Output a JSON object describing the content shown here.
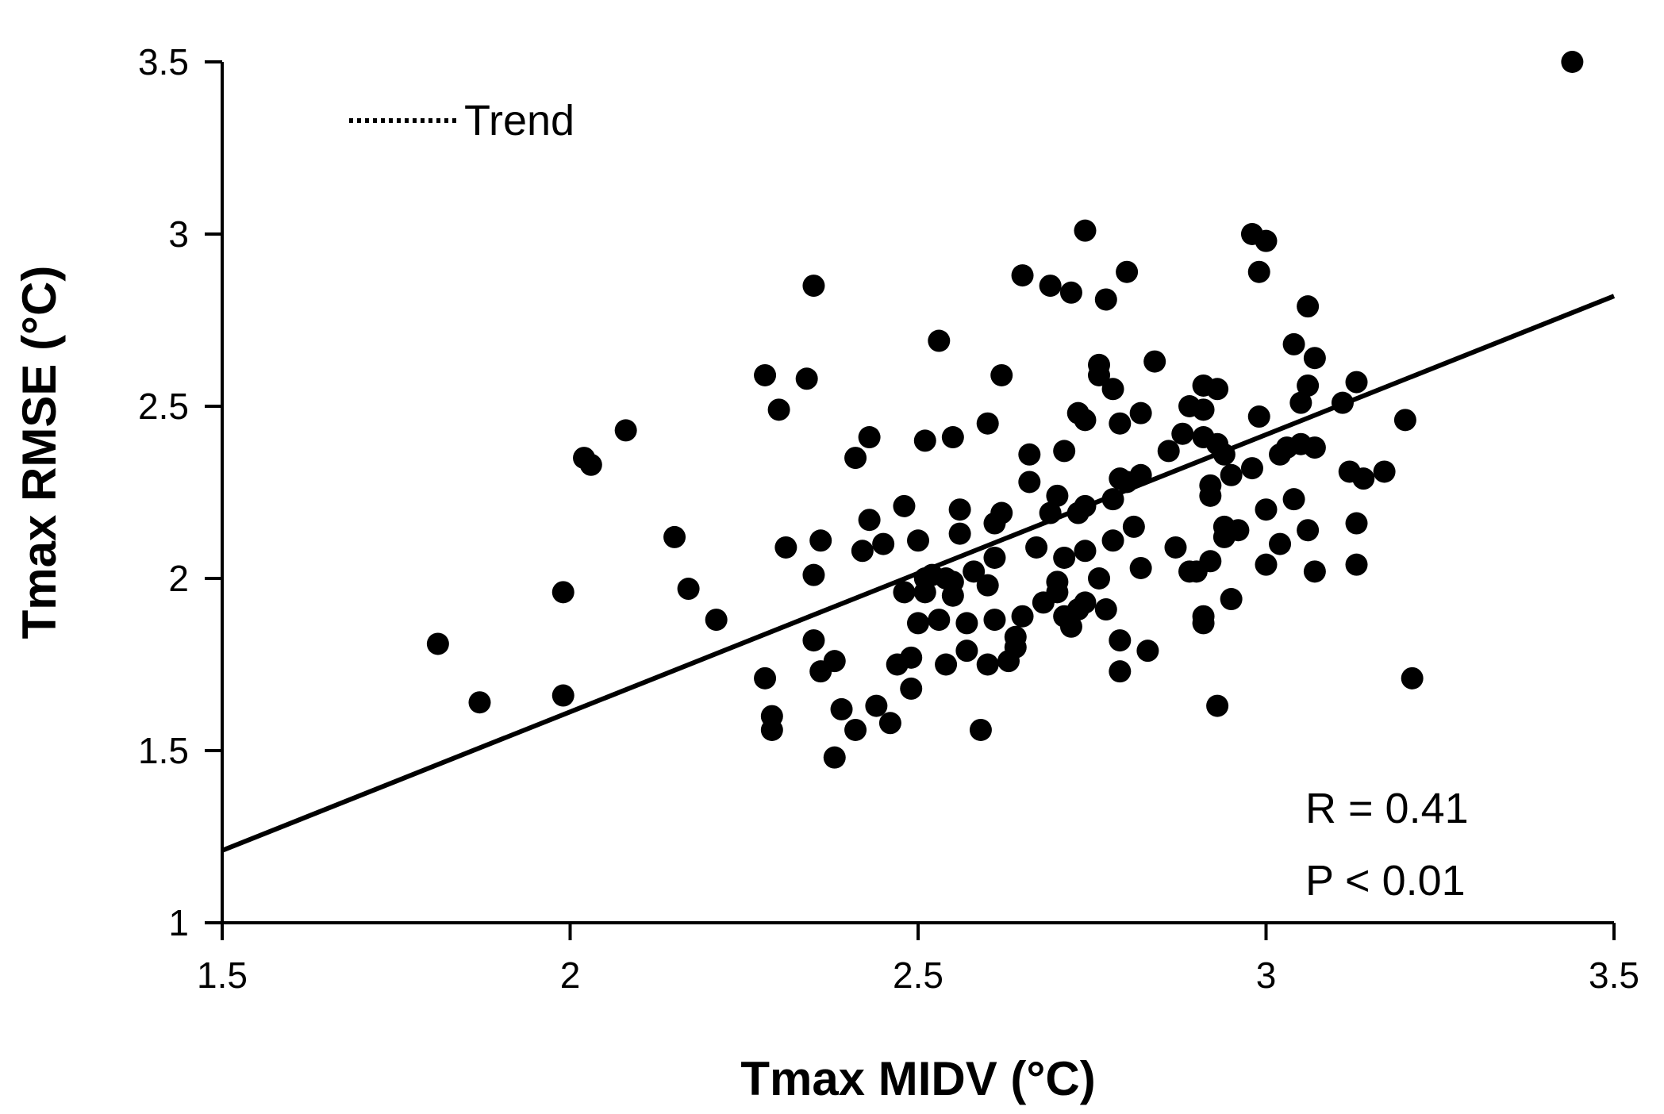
{
  "chart_data": {
    "type": "scatter",
    "title": "",
    "xlabel": "Tmax MIDV (°C)",
    "ylabel": "Tmax RMSE (°C)",
    "xlim": [
      1.5,
      3.5
    ],
    "ylim": [
      1,
      3.5
    ],
    "xticks": [
      "1.5",
      "2",
      "2.5",
      "3",
      "3.5"
    ],
    "yticks": [
      "1",
      "1.5",
      "2",
      "2.5",
      "3",
      "3.5"
    ],
    "grid": false,
    "legend": {
      "position": "top-left",
      "entries": [
        {
          "label": "Trend",
          "style": "dotted"
        }
      ]
    },
    "trend": {
      "x": [
        1.5,
        3.5
      ],
      "y": [
        1.21,
        2.82
      ]
    },
    "annotations": {
      "r": "R = 0.41",
      "p": "P < 0.01"
    },
    "colors": {
      "points": "#000000",
      "axes": "#000000",
      "trend": "#000000"
    },
    "series": [
      {
        "name": "points",
        "points": [
          [
            1.81,
            1.81
          ],
          [
            1.87,
            1.64
          ],
          [
            1.99,
            1.96
          ],
          [
            1.99,
            1.66
          ],
          [
            2.02,
            2.35
          ],
          [
            2.03,
            2.33
          ],
          [
            2.08,
            2.43
          ],
          [
            2.15,
            2.12
          ],
          [
            2.17,
            1.97
          ],
          [
            2.21,
            1.88
          ],
          [
            2.28,
            2.59
          ],
          [
            2.28,
            1.71
          ],
          [
            2.29,
            1.6
          ],
          [
            2.29,
            1.56
          ],
          [
            2.3,
            2.49
          ],
          [
            2.31,
            2.09
          ],
          [
            2.34,
            2.58
          ],
          [
            2.35,
            2.85
          ],
          [
            2.35,
            2.01
          ],
          [
            2.35,
            1.82
          ],
          [
            2.36,
            1.73
          ],
          [
            2.36,
            2.11
          ],
          [
            2.38,
            1.76
          ],
          [
            2.38,
            1.48
          ],
          [
            2.39,
            1.62
          ],
          [
            2.41,
            2.35
          ],
          [
            2.41,
            1.56
          ],
          [
            2.42,
            2.08
          ],
          [
            2.43,
            2.17
          ],
          [
            2.43,
            2.41
          ],
          [
            2.44,
            1.63
          ],
          [
            2.45,
            2.1
          ],
          [
            2.46,
            1.58
          ],
          [
            2.47,
            1.75
          ],
          [
            2.48,
            1.96
          ],
          [
            2.48,
            2.21
          ],
          [
            2.49,
            1.68
          ],
          [
            2.49,
            1.77
          ],
          [
            2.5,
            2.11
          ],
          [
            2.5,
            1.87
          ],
          [
            2.51,
            1.96
          ],
          [
            2.51,
            2.4
          ],
          [
            2.51,
            2.0
          ],
          [
            2.52,
            2.01
          ],
          [
            2.53,
            1.88
          ],
          [
            2.53,
            2.69
          ],
          [
            2.54,
            2.0
          ],
          [
            2.54,
            1.75
          ],
          [
            2.55,
            1.95
          ],
          [
            2.55,
            1.99
          ],
          [
            2.55,
            2.41
          ],
          [
            2.56,
            2.2
          ],
          [
            2.56,
            2.13
          ],
          [
            2.57,
            1.87
          ],
          [
            2.57,
            1.79
          ],
          [
            2.58,
            2.02
          ],
          [
            2.59,
            1.56
          ],
          [
            2.6,
            2.45
          ],
          [
            2.6,
            1.98
          ],
          [
            2.6,
            1.75
          ],
          [
            2.61,
            2.06
          ],
          [
            2.61,
            1.88
          ],
          [
            2.61,
            2.16
          ],
          [
            2.62,
            2.59
          ],
          [
            2.62,
            2.19
          ],
          [
            2.63,
            1.76
          ],
          [
            2.64,
            1.83
          ],
          [
            2.64,
            1.8
          ],
          [
            2.65,
            2.88
          ],
          [
            2.65,
            1.89
          ],
          [
            2.66,
            2.28
          ],
          [
            2.66,
            2.36
          ],
          [
            2.67,
            2.09
          ],
          [
            2.68,
            1.93
          ],
          [
            2.69,
            2.19
          ],
          [
            2.69,
            2.85
          ],
          [
            2.7,
            1.99
          ],
          [
            2.7,
            2.24
          ],
          [
            2.7,
            1.96
          ],
          [
            2.71,
            1.89
          ],
          [
            2.71,
            2.37
          ],
          [
            2.71,
            2.06
          ],
          [
            2.72,
            1.86
          ],
          [
            2.72,
            2.83
          ],
          [
            2.73,
            1.91
          ],
          [
            2.73,
            2.19
          ],
          [
            2.73,
            2.48
          ],
          [
            2.74,
            2.21
          ],
          [
            2.74,
            2.08
          ],
          [
            2.74,
            1.93
          ],
          [
            2.74,
            3.01
          ],
          [
            2.74,
            2.46
          ],
          [
            2.76,
            2.0
          ],
          [
            2.76,
            2.62
          ],
          [
            2.76,
            2.59
          ],
          [
            2.77,
            1.91
          ],
          [
            2.77,
            2.81
          ],
          [
            2.78,
            2.55
          ],
          [
            2.78,
            2.11
          ],
          [
            2.78,
            2.23
          ],
          [
            2.79,
            1.73
          ],
          [
            2.79,
            1.82
          ],
          [
            2.79,
            2.45
          ],
          [
            2.79,
            2.29
          ],
          [
            2.8,
            2.28
          ],
          [
            2.8,
            2.89
          ],
          [
            2.81,
            2.15
          ],
          [
            2.82,
            2.48
          ],
          [
            2.82,
            2.3
          ],
          [
            2.82,
            2.03
          ],
          [
            2.83,
            1.79
          ],
          [
            2.84,
            2.63
          ],
          [
            2.86,
            2.37
          ],
          [
            2.87,
            2.09
          ],
          [
            2.88,
            2.42
          ],
          [
            2.89,
            2.5
          ],
          [
            2.89,
            2.02
          ],
          [
            2.9,
            2.02
          ],
          [
            2.91,
            2.56
          ],
          [
            2.91,
            2.41
          ],
          [
            2.91,
            2.49
          ],
          [
            2.91,
            1.89
          ],
          [
            2.91,
            1.87
          ],
          [
            2.92,
            2.05
          ],
          [
            2.92,
            2.27
          ],
          [
            2.92,
            2.24
          ],
          [
            2.93,
            2.55
          ],
          [
            2.93,
            1.63
          ],
          [
            2.93,
            2.39
          ],
          [
            2.94,
            2.12
          ],
          [
            2.94,
            2.36
          ],
          [
            2.94,
            2.15
          ],
          [
            2.95,
            2.3
          ],
          [
            2.95,
            1.94
          ],
          [
            2.96,
            2.14
          ],
          [
            2.98,
            3.0
          ],
          [
            2.98,
            2.32
          ],
          [
            2.99,
            2.47
          ],
          [
            2.99,
            2.89
          ],
          [
            3.0,
            2.98
          ],
          [
            3.0,
            2.04
          ],
          [
            3.0,
            2.2
          ],
          [
            3.02,
            2.36
          ],
          [
            3.02,
            2.1
          ],
          [
            3.03,
            2.38
          ],
          [
            3.04,
            2.23
          ],
          [
            3.04,
            2.68
          ],
          [
            3.05,
            2.51
          ],
          [
            3.05,
            2.39
          ],
          [
            3.06,
            2.79
          ],
          [
            3.06,
            2.14
          ],
          [
            3.06,
            2.56
          ],
          [
            3.07,
            2.64
          ],
          [
            3.07,
            2.38
          ],
          [
            3.07,
            2.02
          ],
          [
            3.11,
            2.51
          ],
          [
            3.12,
            2.31
          ],
          [
            3.13,
            2.04
          ],
          [
            3.13,
            2.16
          ],
          [
            3.13,
            2.57
          ],
          [
            3.14,
            2.29
          ],
          [
            3.17,
            2.31
          ],
          [
            3.2,
            2.46
          ],
          [
            3.21,
            1.71
          ],
          [
            3.44,
            3.5
          ]
        ]
      }
    ]
  }
}
